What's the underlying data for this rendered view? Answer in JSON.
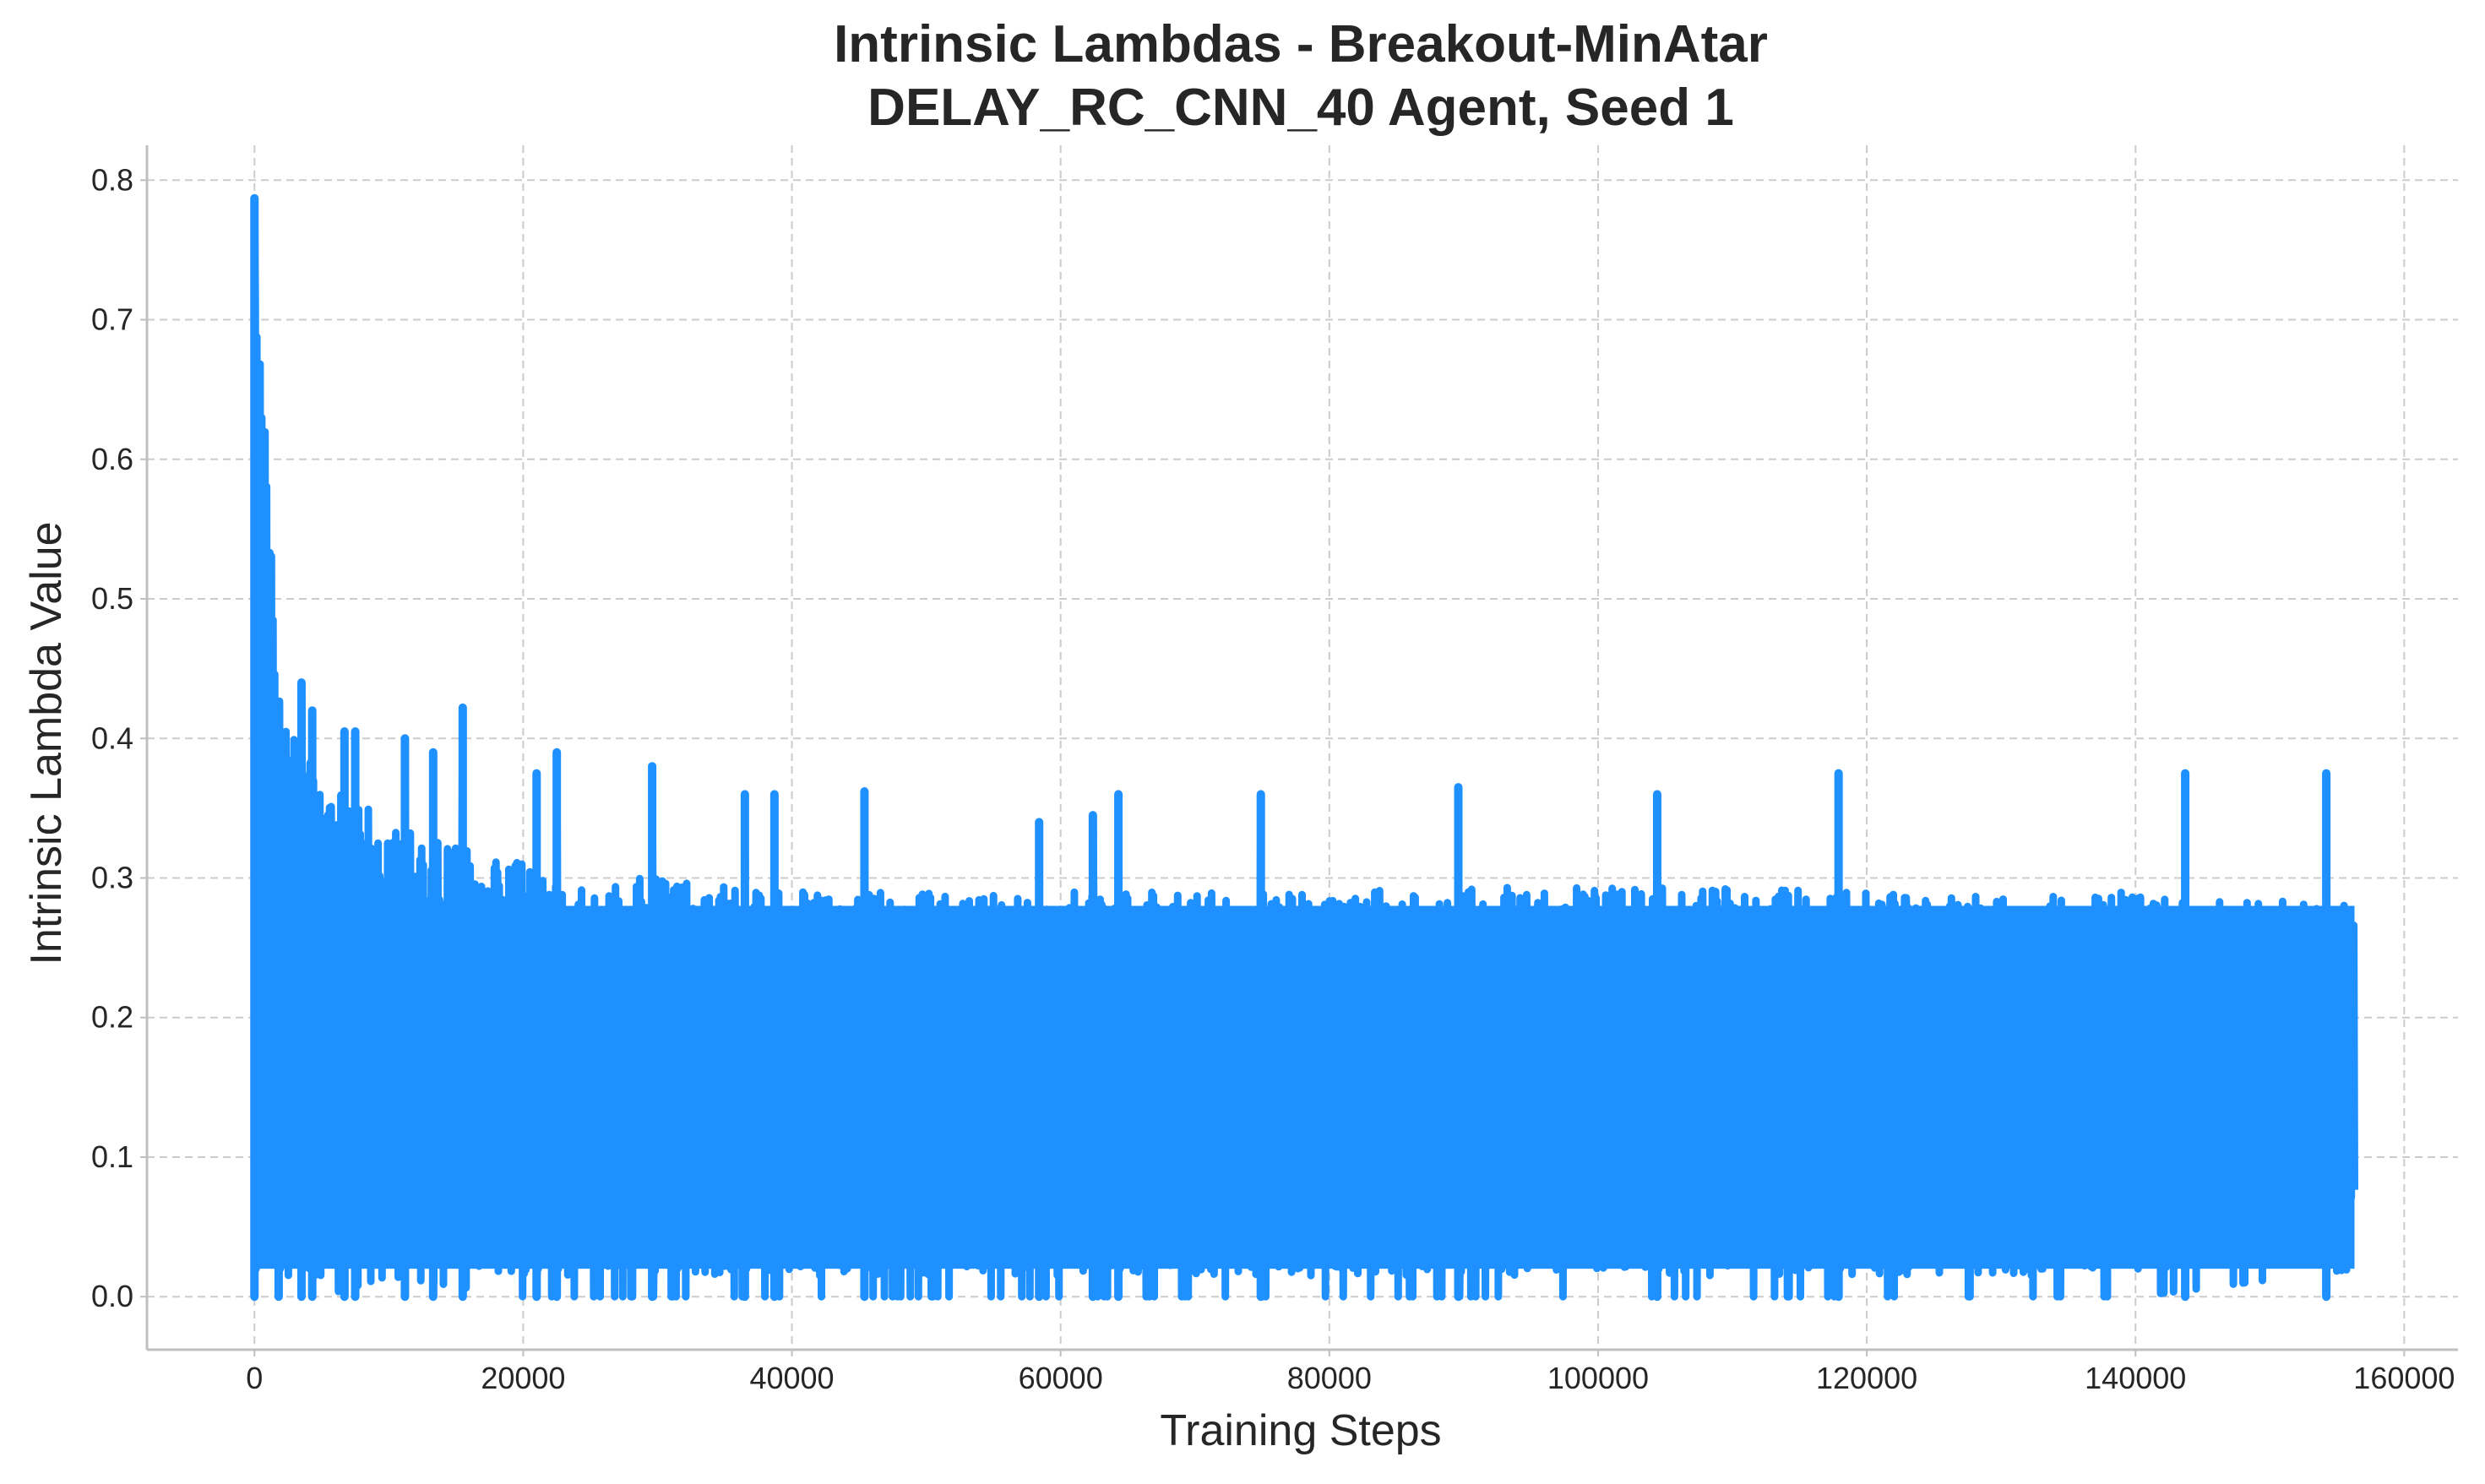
{
  "chart_data": {
    "type": "line",
    "title": [
      "Intrinsic Lambdas - Breakout-MinAtar",
      "DELAY_RC_CNN_40 Agent, Seed 1"
    ],
    "xlabel": "Training Steps",
    "ylabel": "Intrinsic Lambda Value",
    "xlim": [
      -8000,
      164000
    ],
    "ylim": [
      -0.038,
      0.825
    ],
    "xticks": [
      0,
      20000,
      40000,
      60000,
      80000,
      100000,
      120000,
      140000,
      160000
    ],
    "yticks": [
      0.0,
      0.1,
      0.2,
      0.3,
      0.4,
      0.5,
      0.6,
      0.7,
      0.8
    ],
    "grid": true,
    "legend": "none",
    "colors": {
      "series": "#1e90ff"
    },
    "series": [
      {
        "x_range": [
          0,
          156300
        ],
        "value_band": [
          0.0,
          0.787
        ],
        "spikes": [
          {
            "x": 0,
            "y": 0.787
          },
          {
            "x": 1800,
            "y": 0.425
          },
          {
            "x": 3500,
            "y": 0.44
          },
          {
            "x": 4300,
            "y": 0.42
          },
          {
            "x": 6700,
            "y": 0.405
          },
          {
            "x": 7500,
            "y": 0.405
          },
          {
            "x": 11200,
            "y": 0.4
          },
          {
            "x": 13300,
            "y": 0.39
          },
          {
            "x": 15500,
            "y": 0.422
          },
          {
            "x": 21000,
            "y": 0.375
          },
          {
            "x": 22500,
            "y": 0.39
          },
          {
            "x": 29600,
            "y": 0.38
          },
          {
            "x": 36500,
            "y": 0.36
          },
          {
            "x": 38700,
            "y": 0.36
          },
          {
            "x": 45400,
            "y": 0.362
          },
          {
            "x": 58400,
            "y": 0.34
          },
          {
            "x": 62400,
            "y": 0.345
          },
          {
            "x": 64300,
            "y": 0.36
          },
          {
            "x": 74900,
            "y": 0.36
          },
          {
            "x": 89600,
            "y": 0.365
          },
          {
            "x": 104400,
            "y": 0.36
          },
          {
            "x": 117900,
            "y": 0.375
          },
          {
            "x": 143700,
            "y": 0.375
          },
          {
            "x": 154200,
            "y": 0.375
          }
        ],
        "envelope": [
          {
            "x": 0,
            "min": 0.0,
            "max": 0.787
          },
          {
            "x": 2000,
            "min": 0.0,
            "max": 0.43
          },
          {
            "x": 5000,
            "min": 0.0,
            "max": 0.4
          },
          {
            "x": 10000,
            "min": 0.015,
            "max": 0.36
          },
          {
            "x": 20000,
            "min": 0.0,
            "max": 0.33
          },
          {
            "x": 40000,
            "min": 0.0,
            "max": 0.31
          },
          {
            "x": 60000,
            "min": 0.0,
            "max": 0.31
          },
          {
            "x": 80000,
            "min": 0.0,
            "max": 0.31
          },
          {
            "x": 100000,
            "min": 0.0,
            "max": 0.315
          },
          {
            "x": 120000,
            "min": 0.0,
            "max": 0.31
          },
          {
            "x": 140000,
            "min": 0.0,
            "max": 0.31
          },
          {
            "x": 156300,
            "min": 0.02,
            "max": 0.3
          }
        ]
      }
    ]
  }
}
